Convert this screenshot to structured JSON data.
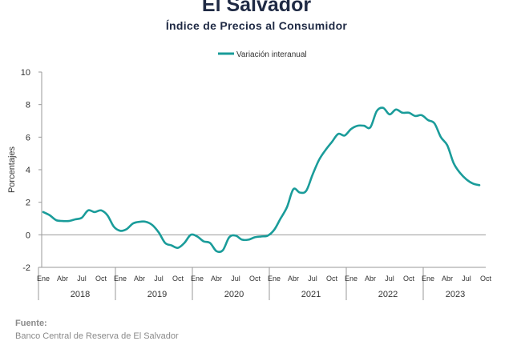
{
  "header": {
    "title": "El Salvador",
    "subtitle": "Índice de Precios al Consumidor"
  },
  "source": {
    "label": "Fuente:",
    "text": "Banco Central de Reserva de El Salvador"
  },
  "chart_data": {
    "type": "line",
    "title": "Índice de Precios al Consumidor",
    "ylabel": "Porcentajes",
    "xlabel": "",
    "ylim": [
      -2,
      10
    ],
    "yticks": [
      -2,
      0,
      2,
      4,
      6,
      8,
      10
    ],
    "month_labels": [
      "Ene",
      "Abr",
      "Jul",
      "Oct"
    ],
    "years": [
      "2018",
      "2019",
      "2020",
      "2021",
      "2022",
      "2023"
    ],
    "legend": {
      "position": "top-center",
      "entries": [
        "Variación interanual"
      ]
    },
    "grid": false,
    "series": [
      {
        "name": "Variación interanual",
        "color": "#1a9c9a",
        "x": [
          "2018-01",
          "2018-02",
          "2018-03",
          "2018-04",
          "2018-05",
          "2018-06",
          "2018-07",
          "2018-08",
          "2018-09",
          "2018-10",
          "2018-11",
          "2018-12",
          "2019-01",
          "2019-02",
          "2019-03",
          "2019-04",
          "2019-05",
          "2019-06",
          "2019-07",
          "2019-08",
          "2019-09",
          "2019-10",
          "2019-11",
          "2019-12",
          "2020-01",
          "2020-02",
          "2020-03",
          "2020-04",
          "2020-05",
          "2020-06",
          "2020-07",
          "2020-08",
          "2020-09",
          "2020-10",
          "2020-11",
          "2020-12",
          "2021-01",
          "2021-02",
          "2021-03",
          "2021-04",
          "2021-05",
          "2021-06",
          "2021-07",
          "2021-08",
          "2021-09",
          "2021-10",
          "2021-11",
          "2021-12",
          "2022-01",
          "2022-02",
          "2022-03",
          "2022-04",
          "2022-05",
          "2022-06",
          "2022-07",
          "2022-08",
          "2022-09",
          "2022-10",
          "2022-11",
          "2022-12",
          "2023-01",
          "2023-02",
          "2023-03",
          "2023-04",
          "2023-05",
          "2023-06",
          "2023-07",
          "2023-08",
          "2023-09"
        ],
        "values": [
          1.4,
          1.2,
          0.9,
          0.85,
          0.85,
          0.95,
          1.05,
          1.5,
          1.4,
          1.5,
          1.2,
          0.5,
          0.25,
          0.35,
          0.7,
          0.8,
          0.8,
          0.6,
          0.15,
          -0.5,
          -0.65,
          -0.8,
          -0.5,
          0.0,
          -0.1,
          -0.4,
          -0.5,
          -1.0,
          -0.95,
          -0.15,
          -0.05,
          -0.3,
          -0.3,
          -0.15,
          -0.1,
          -0.05,
          0.3,
          1.0,
          1.7,
          2.8,
          2.6,
          2.7,
          3.7,
          4.6,
          5.2,
          5.7,
          6.2,
          6.1,
          6.5,
          6.7,
          6.7,
          6.6,
          7.6,
          7.8,
          7.4,
          7.7,
          7.5,
          7.5,
          7.3,
          7.35,
          7.05,
          6.85,
          6.0,
          5.5,
          4.4,
          3.8,
          3.4,
          3.15,
          3.05
        ]
      }
    ]
  }
}
